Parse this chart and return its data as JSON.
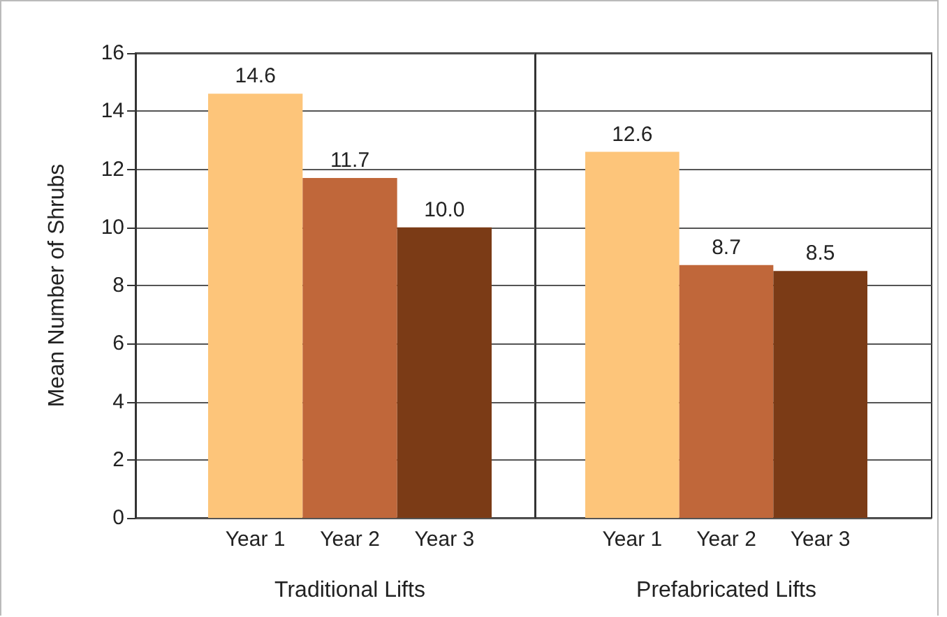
{
  "chart_data": [
    {
      "type": "bar",
      "ylabel": "Mean Number of Shrubs",
      "xlabel": "Traditional Lifts",
      "categories": [
        "Year 1",
        "Year 2",
        "Year 3"
      ],
      "values": [
        14.6,
        11.7,
        10.0
      ],
      "value_labels": [
        "14.6",
        "11.7",
        "10.0"
      ],
      "colors": [
        "#fdc57a",
        "#c0673a",
        "#7b3b16"
      ],
      "ylim": [
        0,
        16
      ],
      "yticks": [
        0,
        2,
        4,
        6,
        8,
        10,
        12,
        14,
        16
      ],
      "grid": "y"
    },
    {
      "type": "bar",
      "xlabel": "Prefabricated Lifts",
      "categories": [
        "Year 1",
        "Year 2",
        "Year 3"
      ],
      "values": [
        12.6,
        8.7,
        8.5
      ],
      "colors": [
        "#fdc57a",
        "#c0673a",
        "#7b3b16"
      ],
      "ylim": [
        0,
        16
      ],
      "yticks": [
        0,
        2,
        4,
        6,
        8,
        10,
        12,
        14,
        16
      ],
      "grid": "y",
      "data_labels": true,
      "tick_labels": "x"
    }
  ]
}
